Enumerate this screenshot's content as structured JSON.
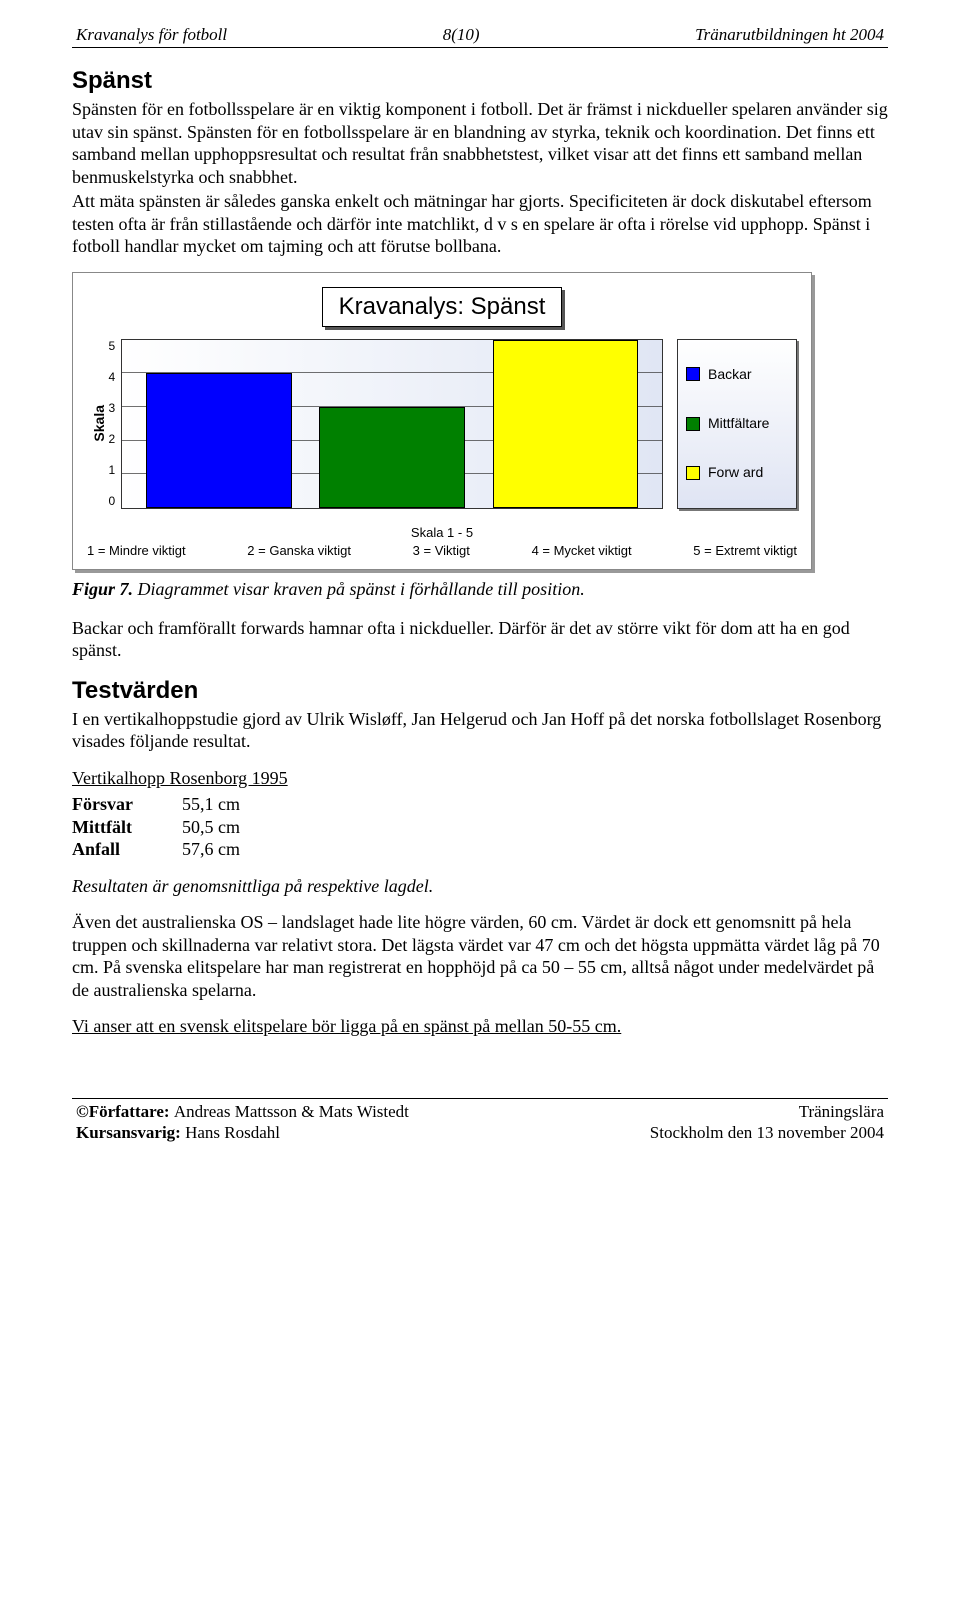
{
  "header": {
    "left": "Kravanalys för fotboll",
    "center": "8(10)",
    "right": "Tränarutbildningen ht 2004"
  },
  "section1": {
    "title": "Spänst",
    "para1": "Spänsten för en fotbollsspelare är en viktig komponent i fotboll. Det är främst i nickdueller spelaren använder sig utav sin spänst. Spänsten för en fotbollsspelare är en blandning av styrka, teknik och koordination. Det finns ett samband mellan upphoppsresultat och resultat från snabbhetstest, vilket visar att det finns ett samband mellan benmuskelstyrka och snabbhet.",
    "para2": "Att mäta spänsten är således ganska enkelt och mätningar har gjorts. Specificiteten är dock diskutabel eftersom testen ofta är från stillastående och därför inte matchlikt, d v s en spelare är ofta i rörelse vid upphopp. Spänst i fotboll handlar mycket om tajming och att förutse bollbana."
  },
  "chart": {
    "title": "Kravanalys: Spänst",
    "ylabel": "Skala",
    "ymax": 5,
    "yticks": [
      "5",
      "4",
      "3",
      "2",
      "1",
      "0"
    ],
    "series": [
      {
        "name": "Backar",
        "value": 4,
        "color": "#0000ff"
      },
      {
        "name": "Mittfältare",
        "value": 3,
        "color": "#008000"
      },
      {
        "name": "Forw ard",
        "value": 5,
        "color": "#ffff00"
      }
    ],
    "scale_label": "Skala 1 - 5",
    "scale_legend": [
      "1 = Mindre viktigt",
      "2 = Ganska viktigt",
      "3 = Viktigt",
      "4 = Mycket viktigt",
      "5 = Extremt viktigt"
    ]
  },
  "fig7": {
    "label": "Figur 7.",
    "text": " Diagrammet visar kraven på spänst i förhållande till position."
  },
  "para3": "Backar och framförallt forwards hamnar ofta i nickdueller. Därför är det av större vikt för dom att ha en god spänst.",
  "section2": {
    "title": "Testvärden",
    "intro": "I en vertikalhoppstudie gjord av Ulrik Wisløff, Jan Helgerud och Jan Hoff på det norska fotbollslaget Rosenborg visades följande resultat.",
    "table_title": "Vertikalhopp Rosenborg 1995",
    "rows": [
      {
        "label": "Försvar",
        "value": "55,1 cm"
      },
      {
        "label": "Mittfält",
        "value": "50,5 cm"
      },
      {
        "label": "Anfall",
        "value": "57,6 cm"
      }
    ],
    "note": "Resultaten är genomsnittliga på respektive lagdel.",
    "para": "Även det australienska OS – landslaget hade lite högre värden, 60 cm. Värdet är dock ett genomsnitt på hela truppen och skillnaderna var relativt stora. Det lägsta värdet var 47 cm och det högsta uppmätta värdet låg på 70 cm. På svenska elitspelare har man registrerat en hopphöjd på ca 50 – 55 cm, alltså något under medelvärdet på de australienska spelarna.",
    "conclusion": "Vi anser att en svensk elitspelare bör ligga på en spänst på mellan 50-55 cm."
  },
  "footer": {
    "authors_label": "©Författare: ",
    "authors": "Andreas Mattsson & Mats Wistedt",
    "course_label": "Kursansvarig: ",
    "course": "Hans Rosdahl",
    "right1": "Träningslära",
    "right2": "Stockholm den 13 november 2004"
  }
}
